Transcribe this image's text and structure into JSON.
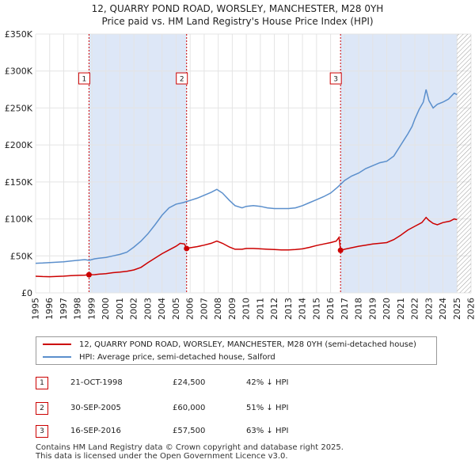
{
  "header": {
    "title_line1": "12, QUARRY POND ROAD, WORSLEY, MANCHESTER, M28 0YH",
    "title_line2": "Price paid vs. HM Land Registry's House Price Index (HPI)"
  },
  "chart_data": {
    "type": "line",
    "xlim": [
      1995,
      2026
    ],
    "ylim": [
      0,
      350000
    ],
    "x_ticks": [
      1995,
      1996,
      1997,
      1998,
      1999,
      2000,
      2001,
      2002,
      2003,
      2004,
      2005,
      2006,
      2007,
      2008,
      2009,
      2010,
      2011,
      2012,
      2013,
      2014,
      2015,
      2016,
      2017,
      2018,
      2019,
      2020,
      2021,
      2022,
      2023,
      2024,
      2025,
      2026
    ],
    "y_ticks": [
      {
        "value": 0,
        "label": "£0"
      },
      {
        "value": 50000,
        "label": "£50K"
      },
      {
        "value": 100000,
        "label": "£100K"
      },
      {
        "value": 150000,
        "label": "£150K"
      },
      {
        "value": 200000,
        "label": "£200K"
      },
      {
        "value": 250000,
        "label": "£250K"
      },
      {
        "value": 300000,
        "label": "£300K"
      },
      {
        "value": 350000,
        "label": "£350K"
      }
    ],
    "grid": true,
    "colors": {
      "property": "#cc0000",
      "hpi": "#5b8fcc",
      "shade": "#dde7f7"
    },
    "shaded_ranges": [
      [
        1998.8,
        2005.75
      ],
      [
        2016.71,
        2025.0
      ]
    ],
    "hatched_range": [
      2025.0,
      2026.0
    ],
    "markers": [
      {
        "label": "1",
        "x": 1998.8,
        "y": 24500
      },
      {
        "label": "2",
        "x": 2005.75,
        "y": 60000
      },
      {
        "label": "3",
        "x": 2016.71,
        "y": 57500
      }
    ],
    "marker_label_y": 290000,
    "series": [
      {
        "name": "12, QUARRY POND ROAD, WORSLEY, MANCHESTER, M28 0YH (semi-detached house)",
        "key": "property",
        "points": [
          [
            1995.0,
            22500
          ],
          [
            1995.5,
            22000
          ],
          [
            1996.0,
            21800
          ],
          [
            1996.5,
            22300
          ],
          [
            1997.0,
            22600
          ],
          [
            1997.5,
            23200
          ],
          [
            1998.0,
            23700
          ],
          [
            1998.5,
            24000
          ],
          [
            1998.8,
            24500
          ],
          [
            1999.2,
            24600
          ],
          [
            1999.5,
            25300
          ],
          [
            2000.0,
            26000
          ],
          [
            2000.5,
            27300
          ],
          [
            2001.0,
            28000
          ],
          [
            2001.5,
            29200
          ],
          [
            2002.0,
            31000
          ],
          [
            2002.5,
            34500
          ],
          [
            2003.0,
            41000
          ],
          [
            2003.5,
            47000
          ],
          [
            2004.0,
            53000
          ],
          [
            2004.5,
            58000
          ],
          [
            2005.0,
            63000
          ],
          [
            2005.3,
            67000
          ],
          [
            2005.6,
            66000
          ],
          [
            2005.75,
            60000
          ],
          [
            2006.0,
            61000
          ],
          [
            2006.5,
            62500
          ],
          [
            2007.0,
            64500
          ],
          [
            2007.5,
            67000
          ],
          [
            2007.9,
            70000
          ],
          [
            2008.3,
            67000
          ],
          [
            2008.8,
            62000
          ],
          [
            2009.2,
            59000
          ],
          [
            2009.7,
            59000
          ],
          [
            2010.0,
            60000
          ],
          [
            2010.5,
            60000
          ],
          [
            2011.0,
            59500
          ],
          [
            2011.5,
            59000
          ],
          [
            2012.0,
            58500
          ],
          [
            2012.5,
            58000
          ],
          [
            2013.0,
            58000
          ],
          [
            2013.5,
            58500
          ],
          [
            2014.0,
            59500
          ],
          [
            2014.5,
            61500
          ],
          [
            2015.0,
            64000
          ],
          [
            2015.5,
            66000
          ],
          [
            2016.0,
            68000
          ],
          [
            2016.4,
            70000
          ],
          [
            2016.6,
            75000
          ],
          [
            2016.71,
            57500
          ],
          [
            2017.0,
            59000
          ],
          [
            2017.5,
            61000
          ],
          [
            2018.0,
            63000
          ],
          [
            2018.5,
            64500
          ],
          [
            2019.0,
            66000
          ],
          [
            2019.5,
            67000
          ],
          [
            2020.0,
            68000
          ],
          [
            2020.5,
            72000
          ],
          [
            2021.0,
            78000
          ],
          [
            2021.5,
            85000
          ],
          [
            2022.0,
            90000
          ],
          [
            2022.5,
            95000
          ],
          [
            2022.8,
            102000
          ],
          [
            2023.0,
            98000
          ],
          [
            2023.3,
            94000
          ],
          [
            2023.6,
            92000
          ],
          [
            2024.0,
            95000
          ],
          [
            2024.5,
            97000
          ],
          [
            2024.8,
            100000
          ],
          [
            2025.0,
            99000
          ]
        ]
      },
      {
        "name": "HPI: Average price, semi-detached house, Salford",
        "key": "hpi",
        "points": [
          [
            1995.0,
            40000
          ],
          [
            1995.5,
            40300
          ],
          [
            1996.0,
            41000
          ],
          [
            1996.5,
            41500
          ],
          [
            1997.0,
            42000
          ],
          [
            1997.5,
            43000
          ],
          [
            1998.0,
            44000
          ],
          [
            1998.5,
            45000
          ],
          [
            1998.8,
            44000
          ],
          [
            1999.2,
            46000
          ],
          [
            1999.5,
            46800
          ],
          [
            2000.0,
            48000
          ],
          [
            2000.5,
            50000
          ],
          [
            2001.0,
            52000
          ],
          [
            2001.5,
            55000
          ],
          [
            2002.0,
            62000
          ],
          [
            2002.5,
            70000
          ],
          [
            2003.0,
            80000
          ],
          [
            2003.5,
            92000
          ],
          [
            2004.0,
            105000
          ],
          [
            2004.5,
            115000
          ],
          [
            2005.0,
            120000
          ],
          [
            2005.5,
            122000
          ],
          [
            2006.0,
            125000
          ],
          [
            2006.5,
            128000
          ],
          [
            2007.0,
            132000
          ],
          [
            2007.5,
            136000
          ],
          [
            2007.9,
            140000
          ],
          [
            2008.3,
            135000
          ],
          [
            2008.8,
            125000
          ],
          [
            2009.2,
            118000
          ],
          [
            2009.7,
            115000
          ],
          [
            2010.0,
            117000
          ],
          [
            2010.5,
            118000
          ],
          [
            2011.0,
            117000
          ],
          [
            2011.5,
            115000
          ],
          [
            2012.0,
            114000
          ],
          [
            2012.5,
            114000
          ],
          [
            2013.0,
            114000
          ],
          [
            2013.5,
            115000
          ],
          [
            2014.0,
            118000
          ],
          [
            2014.5,
            122000
          ],
          [
            2015.0,
            126000
          ],
          [
            2015.5,
            130000
          ],
          [
            2016.0,
            135000
          ],
          [
            2016.5,
            143000
          ],
          [
            2017.0,
            152000
          ],
          [
            2017.5,
            158000
          ],
          [
            2018.0,
            162000
          ],
          [
            2018.5,
            168000
          ],
          [
            2019.0,
            172000
          ],
          [
            2019.5,
            176000
          ],
          [
            2020.0,
            178000
          ],
          [
            2020.5,
            185000
          ],
          [
            2021.0,
            200000
          ],
          [
            2021.5,
            215000
          ],
          [
            2021.8,
            225000
          ],
          [
            2022.0,
            235000
          ],
          [
            2022.3,
            248000
          ],
          [
            2022.6,
            258000
          ],
          [
            2022.8,
            275000
          ],
          [
            2023.0,
            260000
          ],
          [
            2023.3,
            250000
          ],
          [
            2023.6,
            255000
          ],
          [
            2024.0,
            258000
          ],
          [
            2024.4,
            262000
          ],
          [
            2024.8,
            270000
          ],
          [
            2025.0,
            268000
          ]
        ]
      }
    ]
  },
  "legend": {
    "property_label": "12, QUARRY POND ROAD, WORSLEY, MANCHESTER, M28 0YH (semi-detached house)",
    "hpi_label": "HPI: Average price, semi-detached house, Salford"
  },
  "transactions": [
    {
      "num": "1",
      "date": "21-OCT-1998",
      "price": "£24,500",
      "hpi": "42% ↓ HPI"
    },
    {
      "num": "2",
      "date": "30-SEP-2005",
      "price": "£60,000",
      "hpi": "51% ↓ HPI"
    },
    {
      "num": "3",
      "date": "16-SEP-2016",
      "price": "£57,500",
      "hpi": "63% ↓ HPI"
    }
  ],
  "footer": {
    "line1": "Contains HM Land Registry data © Crown copyright and database right 2025.",
    "line2": "This data is licensed under the Open Government Licence v3.0."
  }
}
